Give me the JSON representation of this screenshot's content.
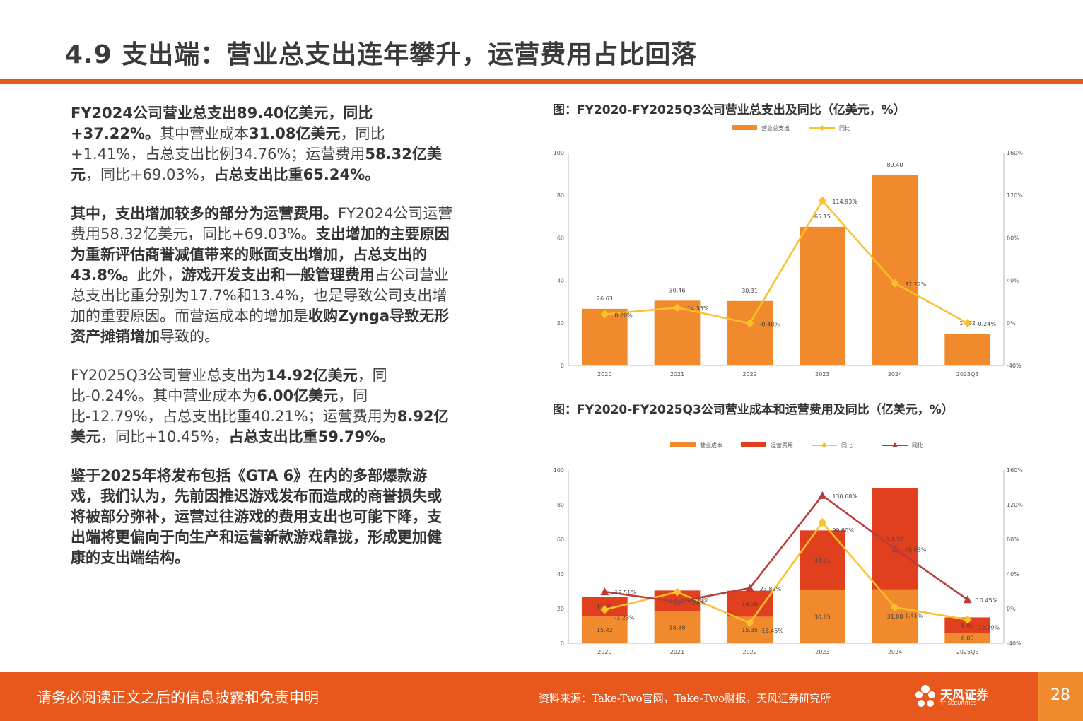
{
  "title": "4.9 支出端：营业总支出连年攀升，运营费用占比回落",
  "paragraphs": [
    [
      {
        "t": "FY2024公司营业总支出89.40亿美元，同比+37.22%。",
        "b": true
      },
      {
        "t": "其中营业成本",
        "b": false
      },
      {
        "t": "31.08亿美元",
        "b": true
      },
      {
        "t": "，同比+1.41%，占总支出比例34.76%；运营费用",
        "b": false
      },
      {
        "t": "58.32亿美元",
        "b": true
      },
      {
        "t": "，同比+69.03%，",
        "b": false
      },
      {
        "t": "占总支出比重65.24%。",
        "b": true
      }
    ],
    [
      {
        "t": "其中，支出增加较多的部分为运营费用。",
        "b": true
      },
      {
        "t": "FY2024公司运营费用58.32亿美元，同比+69.03%。",
        "b": false
      },
      {
        "t": "支出增加的主要原因为重新评估商誉减值带来的账面支出增加，占总支出的43.8%。",
        "b": true
      },
      {
        "t": "此外，",
        "b": false
      },
      {
        "t": "游戏开发支出和一般管理费用",
        "b": true
      },
      {
        "t": "占公司营业总支出比重分别为17.7%和13.4%，也是导致公司支出增加的重要原因。而营运成本的增加是",
        "b": false
      },
      {
        "t": "收购Zynga导致无形资产摊销增加",
        "b": true
      },
      {
        "t": "导致的。",
        "b": false
      }
    ],
    [
      {
        "t": "FY2025Q3公司营业总支出为",
        "b": false
      },
      {
        "t": "14.92亿美元",
        "b": true
      },
      {
        "t": "，同比-0.24%。其中营业成本为",
        "b": false
      },
      {
        "t": "6.00亿美元",
        "b": true
      },
      {
        "t": "，同比-12.79%，占总支出比重40.21%；运营费用为",
        "b": false
      },
      {
        "t": "8.92亿美元",
        "b": true
      },
      {
        "t": "，同比+10.45%，",
        "b": false
      },
      {
        "t": "占总支出比重59.79%。",
        "b": true
      }
    ],
    [
      {
        "t": "鉴于2025年将发布包括《GTA 6》在内的多部爆款游戏，我们认为，先前因推迟游戏发布而造成的商誉损失或将被部分弥补，运营过往游戏的费用支出也可能下降，支出端将更偏向于向生产和运营新款游戏靠拢，形成更加健康的支出端结构。",
        "b": true
      }
    ]
  ],
  "chart_data": [
    {
      "type": "bar",
      "title": "图：FY2020-FY2025Q3公司营业总支出及同比（亿美元，%）",
      "categories": [
        "2020",
        "2021",
        "2022",
        "2023",
        "2024",
        "2025Q3"
      ],
      "series": [
        {
          "name": "营业总支出",
          "kind": "bar",
          "axis": "left",
          "color": "#f08a2c",
          "values": [
            26.63,
            30.46,
            30.31,
            65.15,
            89.4,
            14.92
          ],
          "labels": [
            "26.63",
            "30.46",
            "30.31",
            "65.15",
            "89.40",
            "14.92"
          ]
        },
        {
          "name": "同比",
          "kind": "line",
          "axis": "right",
          "color": "#fbc02d",
          "values": [
            8.2,
            14.35,
            -0.48,
            114.93,
            37.22,
            -0.24
          ],
          "labels": [
            "8.20%",
            "14.35%",
            "-0.48%",
            "114.93%",
            "37.22%",
            "-0.24%"
          ]
        }
      ],
      "left_ticks": [
        "0",
        "20",
        "40",
        "60",
        "80",
        "100"
      ],
      "right_ticks": [
        "-40%",
        "0%",
        "40%",
        "80%",
        "120%",
        "160%"
      ],
      "ylim": [
        0,
        100
      ],
      "y2lim": [
        -40,
        160
      ],
      "legend_position": "top-center"
    },
    {
      "type": "bar",
      "stacked": true,
      "title": "图：FY2020-FY2025Q3公司营业成本和运营费用及同比（亿美元，%）",
      "categories": [
        "2020",
        "2021",
        "2022",
        "2023",
        "2024",
        "2025Q3"
      ],
      "series": [
        {
          "name": "营业成本",
          "kind": "bar",
          "axis": "left",
          "color": "#f08a2c",
          "values": [
            15.42,
            18.38,
            15.35,
            30.65,
            31.08,
            6.0
          ],
          "labels": [
            "15.42",
            "18.38",
            "15.35",
            "30.65",
            "31.08",
            "6.00"
          ]
        },
        {
          "name": "运营费用",
          "kind": "bar",
          "axis": "left",
          "color": "#e0401e",
          "values": [
            11.21,
            12.08,
            14.96,
            34.51,
            58.32,
            8.92
          ],
          "labels": [
            "11.21",
            "12.08",
            "14.96",
            "34.51",
            "58.32",
            "8.92"
          ]
        },
        {
          "name": "同比",
          "kind": "line",
          "axis": "right",
          "color": "#fbc02d",
          "values": [
            -1.23,
            19.15,
            -16.45,
            99.6,
            1.41,
            -12.79
          ],
          "labels": [
            "-1.23%",
            "19.15%",
            "-16.45%",
            "99.60%",
            "1.41%",
            "-12.79%"
          ]
        },
        {
          "name": "同比",
          "kind": "line",
          "axis": "right",
          "color": "#b83a3a",
          "values": [
            19.51,
            7.76,
            23.82,
            130.68,
            69.03,
            10.45
          ],
          "labels": [
            "19.51%",
            "7.76%",
            "23.82%",
            "130.68%",
            "69.03%",
            "10.45%"
          ]
        }
      ],
      "left_ticks": [
        "0",
        "20",
        "40",
        "60",
        "80",
        "100"
      ],
      "right_ticks": [
        "-40%",
        "0%",
        "40%",
        "80%",
        "120%",
        "160%"
      ],
      "ylim": [
        0,
        100
      ],
      "y2lim": [
        -40,
        160
      ],
      "legend_position": "top-center"
    }
  ],
  "footer": {
    "disclaimer": "请务必阅读正文之后的信息披露和免责申明",
    "source": "资料来源：Take-Two官网，Take-Two财报，天风证券研究所",
    "logo_text": "天风证券",
    "logo_sub": "TF SECURITIES",
    "page": "28"
  }
}
